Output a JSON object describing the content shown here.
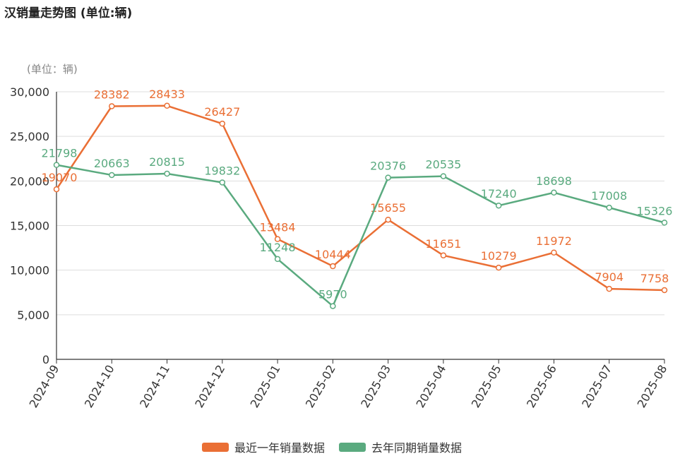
{
  "chart_data": {
    "type": "line",
    "title": "汉销量走势图 (单位:辆)",
    "y_unit_label": "(单位：辆)",
    "ylim": [
      0,
      30000
    ],
    "y_ticks": [
      "0",
      "5,000",
      "10,000",
      "15,000",
      "20,000",
      "25,000",
      "30,000"
    ],
    "y_tick_values": [
      0,
      5000,
      10000,
      15000,
      20000,
      25000,
      30000
    ],
    "categories": [
      "2024-09",
      "2024-10",
      "2024-11",
      "2024-12",
      "2025-01",
      "2025-02",
      "2025-03",
      "2025-04",
      "2025-05",
      "2025-06",
      "2025-07",
      "2025-08"
    ],
    "grid": true,
    "legend_position": "bottom",
    "series": [
      {
        "name": "最近一年销量数据",
        "color": "#ea6f35",
        "values": [
          19070,
          28382,
          28433,
          26427,
          13484,
          10444,
          15655,
          11651,
          10279,
          11972,
          7904,
          7758
        ]
      },
      {
        "name": "去年同期销量数据",
        "color": "#5aaa7f",
        "values": [
          21798,
          20663,
          20815,
          19832,
          11248,
          5970,
          20376,
          20535,
          17240,
          18698,
          17008,
          15326
        ]
      }
    ]
  }
}
